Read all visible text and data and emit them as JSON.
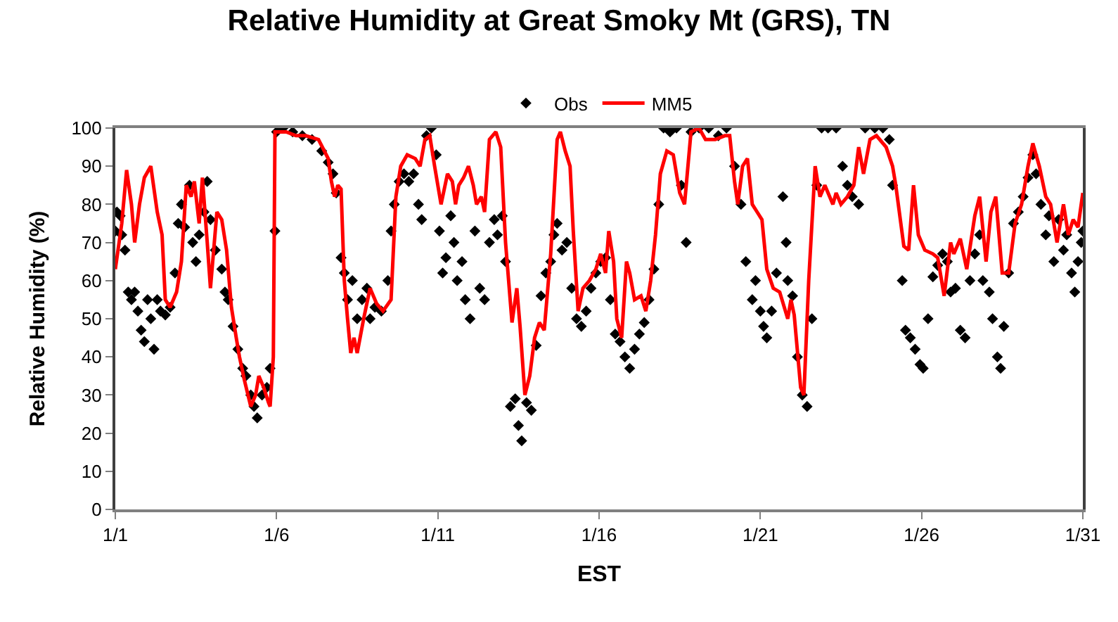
{
  "chart_data": {
    "type": "line",
    "title": "Relative Humidity at Great Smoky Mt (GRS), TN",
    "xlabel": "EST",
    "ylabel": "Relative Humidity (%)",
    "xlim": [
      "--01-01",
      "--01-31"
    ],
    "xticks": [
      {
        "value": "--01-01",
        "label": "1/1"
      },
      {
        "value": "--01-06",
        "label": "1/6"
      },
      {
        "value": "--01-11",
        "label": "1/11"
      },
      {
        "value": "--01-16",
        "label": "1/16"
      },
      {
        "value": "--01-21",
        "label": "1/21"
      },
      {
        "value": "--01-26",
        "label": "1/26"
      },
      {
        "value": "--01-31",
        "label": "1/31"
      }
    ],
    "ylim": [
      0,
      100
    ],
    "yticks": [
      0,
      10,
      20,
      30,
      40,
      50,
      60,
      70,
      80,
      90,
      100
    ],
    "legend": "top",
    "series": [
      {
        "name": "Obs",
        "type": "scatter",
        "marker": "diamond",
        "color": "#000000",
        "x": [
          "--01-01T00:00",
          "--01-01T01:12",
          "--01-01T03:36",
          "--01-01T04:48",
          "--01-01T07:12",
          "--01-01T09:36",
          "--01-01T12:00",
          "--01-01T14:24",
          "--01-01T16:48",
          "--01-01T19:12",
          "--01-01T21:36",
          "--01-02T00:00",
          "--01-02T02:24",
          "--01-02T04:48",
          "--01-02T07:12",
          "--01-02T09:36",
          "--01-02T13:12",
          "--01-02T16:48",
          "--01-02T20:24",
          "--01-02T22:48",
          "--01-03T01:12",
          "--01-03T03:36",
          "--01-03T07:12",
          "--01-03T09:36",
          "--01-03T12:00",
          "--01-03T14:24",
          "--01-03T18:00",
          "--01-03T20:24",
          "--01-03T22:48",
          "--01-04T02:24",
          "--01-04T07:12",
          "--01-04T09:36",
          "--01-04T12:00",
          "--01-04T15:36",
          "--01-04T19:12",
          "--01-04T22:48",
          "--01-05T01:12",
          "--01-05T04:48",
          "--01-05T07:12",
          "--01-05T09:36",
          "--01-05T13:12",
          "--01-05T16:48",
          "--01-05T19:12",
          "--01-05T22:48",
          "--01-06T00:00",
          "--01-06T04:48",
          "--01-06T12:00",
          "--01-06T19:12",
          "--01-07T02:24",
          "--01-07T09:36",
          "--01-07T14:24",
          "--01-07T18:00",
          "--01-07T20:24",
          "--01-08T00:00",
          "--01-08T02:24",
          "--01-08T04:48",
          "--01-08T08:24",
          "--01-08T12:00",
          "--01-08T15:36",
          "--01-08T19:12",
          "--01-08T21:36",
          "--01-09T01:12",
          "--01-09T06:00",
          "--01-09T10:48",
          "--01-09T13:12",
          "--01-09T15:36",
          "--01-09T19:12",
          "--01-09T22:48",
          "--01-10T02:24",
          "--01-10T06:00",
          "--01-10T09:36",
          "--01-10T12:00",
          "--01-10T15:36",
          "--01-10T19:12",
          "--01-10T22:48",
          "--01-11T01:12",
          "--01-11T03:36",
          "--01-11T06:00",
          "--01-11T09:36",
          "--01-11T12:00",
          "--01-11T14:24",
          "--01-11T18:00",
          "--01-11T20:24",
          "--01-12T00:00",
          "--01-12T03:36",
          "--01-12T07:12",
          "--01-12T10:48",
          "--01-12T14:24",
          "--01-12T18:00",
          "--01-12T20:24",
          "--01-13T00:00",
          "--01-13T02:24",
          "--01-13T06:00",
          "--01-13T09:36",
          "--01-13T12:00",
          "--01-13T14:24",
          "--01-13T18:00",
          "--01-13T21:36",
          "--01-14T01:12",
          "--01-14T04:48",
          "--01-14T08:24",
          "--01-14T12:00",
          "--01-14T14:24",
          "--01-14T16:48",
          "--01-14T20:24",
          "--01-15T00:00",
          "--01-15T03:36",
          "--01-15T07:12",
          "--01-15T10:48",
          "--01-15T14:24",
          "--01-15T18:00",
          "--01-15T21:36",
          "--01-16T01:12",
          "--01-16T04:48",
          "--01-16T08:24",
          "--01-16T12:00",
          "--01-16T15:36",
          "--01-16T19:12",
          "--01-16T22:48",
          "--01-17T02:24",
          "--01-17T06:00",
          "--01-17T09:36",
          "--01-17T13:12",
          "--01-17T16:48",
          "--01-17T20:24",
          "--01-18T00:00",
          "--01-18T04:48",
          "--01-18T09:36",
          "--01-18T13:12",
          "--01-18T16:48",
          "--01-18T20:24",
          "--01-19T02:24",
          "--01-19T09:36",
          "--01-19T16:48",
          "--01-19T22:48",
          "--01-20T04:48",
          "--01-20T09:36",
          "--01-20T13:12",
          "--01-20T18:00",
          "--01-20T20:24",
          "--01-21T00:00",
          "--01-21T02:24",
          "--01-21T04:48",
          "--01-21T08:24",
          "--01-21T12:00",
          "--01-21T16:48",
          "--01-21T19:12",
          "--01-21T20:24",
          "--01-22T00:00",
          "--01-22T03:36",
          "--01-22T07:12",
          "--01-22T10:48",
          "--01-22T14:24",
          "--01-22T18:00",
          "--01-22T21:36",
          "--01-23T02:24",
          "--01-23T08:24",
          "--01-23T13:12",
          "--01-23T16:48",
          "--01-23T20:24",
          "--01-24T01:12",
          "--01-24T06:00",
          "--01-24T13:12",
          "--01-24T19:12",
          "--01-25T00:00",
          "--01-25T02:24",
          "--01-25T09:36",
          "--01-25T12:00",
          "--01-25T15:36",
          "--01-25T19:12",
          "--01-25T22:48",
          "--01-26T01:12",
          "--01-26T04:48",
          "--01-26T08:24",
          "--01-26T12:00",
          "--01-26T15:36",
          "--01-26T19:12",
          "--01-26T21:36",
          "--01-27T01:12",
          "--01-27T04:48",
          "--01-27T08:24",
          "--01-27T12:00",
          "--01-27T15:36",
          "--01-27T19:12",
          "--01-27T21:36",
          "--01-28T02:24",
          "--01-28T04:48",
          "--01-28T08:24",
          "--01-28T10:48",
          "--01-28T13:12",
          "--01-28T16:48",
          "--01-28T20:24",
          "--01-29T00:00",
          "--01-29T03:36",
          "--01-29T07:12",
          "--01-29T10:48",
          "--01-29T13:12",
          "--01-29T16:48",
          "--01-29T20:24",
          "--01-29T22:48",
          "--01-30T02:24",
          "--01-30T06:00",
          "--01-30T09:36",
          "--01-30T12:00",
          "--01-30T15:36",
          "--01-30T18:00",
          "--01-30T20:24",
          "--01-30T22:48",
          "--01-31T00:00"
        ],
        "values": [
          73,
          78,
          77,
          72,
          68,
          57,
          55,
          57,
          52,
          47,
          44,
          55,
          50,
          42,
          55,
          52,
          51,
          53,
          62,
          75,
          80,
          74,
          85,
          70,
          65,
          72,
          78,
          86,
          76,
          68,
          63,
          57,
          55,
          48,
          42,
          37,
          35,
          30,
          27,
          24,
          30,
          32,
          37,
          73,
          99,
          100,
          99,
          98,
          97,
          94,
          91,
          88,
          83,
          66,
          62,
          55,
          60,
          50,
          55,
          58,
          50,
          53,
          52,
          60,
          73,
          80,
          86,
          88,
          86,
          88,
          80,
          76,
          98,
          100,
          93,
          73,
          62,
          66,
          77,
          70,
          60,
          65,
          55,
          50,
          73,
          58,
          55,
          70,
          76,
          72,
          77,
          65,
          27,
          29,
          22,
          18,
          28,
          26,
          43,
          56,
          62,
          65,
          72,
          75,
          68,
          70,
          58,
          50,
          48,
          52,
          58,
          62,
          65,
          66,
          55,
          46,
          44,
          40,
          37,
          42,
          46,
          49,
          55,
          63,
          80,
          100,
          99,
          100,
          85,
          70,
          99,
          100,
          100,
          98,
          100,
          90,
          80,
          65,
          55,
          60,
          52,
          48,
          45,
          52,
          62,
          82,
          70,
          60,
          56,
          40,
          30,
          27,
          50,
          85,
          100,
          100,
          100,
          90,
          85,
          82,
          80,
          100,
          100,
          100,
          97,
          85,
          60,
          47,
          45,
          42,
          38,
          37,
          50,
          61,
          64,
          67,
          65,
          57,
          58,
          47,
          45,
          60,
          67,
          72,
          60,
          57,
          50,
          40,
          37,
          48,
          62,
          75,
          78,
          82,
          87,
          93,
          88,
          80,
          72,
          77,
          65,
          76,
          68,
          72,
          62,
          57,
          65,
          70,
          73
        ]
      },
      {
        "name": "MM5",
        "color": "#ff0000",
        "line_style": "solid",
        "x": [
          "--01-01T00:00",
          "--01-01T04:48",
          "--01-01T08:24",
          "--01-01T12:00",
          "--01-01T14:24",
          "--01-01T18:00",
          "--01-01T21:36",
          "--01-02T02:24",
          "--01-02T07:12",
          "--01-02T10:48",
          "--01-02T13:12",
          "--01-02T16:48",
          "--01-02T21:36",
          "--01-03T01:12",
          "--01-03T04:48",
          "--01-03T08:24",
          "--01-03T10:48",
          "--01-03T14:24",
          "--01-03T16:48",
          "--01-03T20:24",
          "--01-03T22:48",
          "--01-04T03:36",
          "--01-04T07:12",
          "--01-04T10:48",
          "--01-04T14:24",
          "--01-04T18:00",
          "--01-04T20:24",
          "--01-05T00:00",
          "--01-05T04:48",
          "--01-05T08:24",
          "--01-05T10:48",
          "--01-05T14:24",
          "--01-05T18:00",
          "--01-05T19:12",
          "--01-05T21:36",
          "--01-05T22:48",
          "--01-06T07:12",
          "--01-06T14:24",
          "--01-06T21:36",
          "--01-07T07:12",
          "--01-07T14:24",
          "--01-07T16:48",
          "--01-07T19:12",
          "--01-07T21:36",
          "--01-08T00:00",
          "--01-08T02:24",
          "--01-08T04:48",
          "--01-08T07:12",
          "--01-08T09:36",
          "--01-08T12:00",
          "--01-08T16:48",
          "--01-08T21:36",
          "--01-09T02:24",
          "--01-09T07:12",
          "--01-09T13:12",
          "--01-09T16:48",
          "--01-09T20:24",
          "--01-10T01:12",
          "--01-10T07:12",
          "--01-10T10:48",
          "--01-10T14:24",
          "--01-10T18:00",
          "--01-10T21:36",
          "--01-11T02:24",
          "--01-11T07:12",
          "--01-11T10:48",
          "--01-11T13:12",
          "--01-11T15:36",
          "--01-11T19:12",
          "--01-11T22:48",
          "--01-12T02:24",
          "--01-12T04:48",
          "--01-12T08:24",
          "--01-12T10:48",
          "--01-12T14:24",
          "--01-12T19:12",
          "--01-12T22:48",
          "--01-13T02:24",
          "--01-13T07:12",
          "--01-13T10:48",
          "--01-13T13:12",
          "--01-13T16:48",
          "--01-13T20:24",
          "--01-14T00:00",
          "--01-14T03:36",
          "--01-14T07:12",
          "--01-14T12:00",
          "--01-14T16:48",
          "--01-14T19:12",
          "--01-14T22:48",
          "--01-15T02:24",
          "--01-15T04:48",
          "--01-15T08:24",
          "--01-15T12:00",
          "--01-15T16:48",
          "--01-15T21:36",
          "--01-16T01:12",
          "--01-16T04:48",
          "--01-16T07:12",
          "--01-16T10:48",
          "--01-16T13:12",
          "--01-16T16:48",
          "--01-16T20:24",
          "--01-16T22:48",
          "--01-17T02:24",
          "--01-17T07:12",
          "--01-17T10:48",
          "--01-17T14:24",
          "--01-17T18:00",
          "--01-17T21:36",
          "--01-18T02:24",
          "--01-18T07:12",
          "--01-18T12:00",
          "--01-18T15:36",
          "--01-18T20:24",
          "--01-19T02:24",
          "--01-19T07:12",
          "--01-19T14:24",
          "--01-19T21:36",
          "--01-20T01:12",
          "--01-20T04:48",
          "--01-20T07:12",
          "--01-20T10:48",
          "--01-20T14:24",
          "--01-20T18:00",
          "--01-20T21:36",
          "--01-21T01:12",
          "--01-21T04:48",
          "--01-21T09:36",
          "--01-21T14:24",
          "--01-21T20:24",
          "--01-21T22:48",
          "--01-22T01:12",
          "--01-22T06:00",
          "--01-22T08:24",
          "--01-22T12:00",
          "--01-22T16:48",
          "--01-22T20:24",
          "--01-23T00:00",
          "--01-23T06:00",
          "--01-23T08:24",
          "--01-23T12:00",
          "--01-23T16:48",
          "--01-23T21:36",
          "--01-24T01:12",
          "--01-24T04:48",
          "--01-24T09:36",
          "--01-24T14:24",
          "--01-24T21:36",
          "--01-25T02:24",
          "--01-25T04:48",
          "--01-25T10:48",
          "--01-25T14:24",
          "--01-25T18:00",
          "--01-25T21:36",
          "--01-26T02:24",
          "--01-26T08:24",
          "--01-26T12:00",
          "--01-26T16:48",
          "--01-26T21:36",
          "--01-27T00:00",
          "--01-27T04:48",
          "--01-27T09:36",
          "--01-27T15:36",
          "--01-27T19:12",
          "--01-28T00:00",
          "--01-28T03:36",
          "--01-28T07:12",
          "--01-28T12:00",
          "--01-28T16:48",
          "--01-28T21:36",
          "--01-29T02:24",
          "--01-29T07:12",
          "--01-29T10:48",
          "--01-29T15:36",
          "--01-29T20:24",
          "--01-30T00:00",
          "--01-30T04:48",
          "--01-30T09:36",
          "--01-30T13:12",
          "--01-30T16:48",
          "--01-30T20:24",
          "--01-31T00:00"
        ],
        "values": [
          63,
          75,
          89,
          80,
          70,
          80,
          87,
          90,
          78,
          72,
          55,
          53,
          57,
          65,
          85,
          82,
          86,
          75,
          87,
          70,
          58,
          78,
          76,
          68,
          53,
          45,
          40,
          34,
          27,
          30,
          35,
          32,
          28,
          27,
          40,
          99,
          99,
          98,
          98,
          97,
          92,
          86,
          82,
          85,
          84,
          60,
          50,
          41,
          45,
          41,
          50,
          58,
          54,
          52,
          55,
          82,
          90,
          93,
          92,
          90,
          97,
          98,
          90,
          80,
          88,
          86,
          80,
          85,
          87,
          90,
          85,
          80,
          82,
          78,
          97,
          99,
          95,
          70,
          49,
          58,
          48,
          30,
          35,
          45,
          49,
          47,
          67,
          97,
          99,
          94,
          90,
          73,
          52,
          58,
          60,
          63,
          67,
          62,
          73,
          65,
          50,
          45,
          65,
          62,
          55,
          56,
          52,
          60,
          72,
          88,
          94,
          93,
          83,
          80,
          99,
          100,
          97,
          97,
          98,
          98,
          86,
          80,
          90,
          92,
          80,
          78,
          76,
          63,
          58,
          57,
          50,
          55,
          51,
          32,
          30,
          60,
          90,
          82,
          85,
          80,
          83,
          80,
          82,
          85,
          95,
          88,
          97,
          98,
          95,
          90,
          85,
          69,
          68,
          85,
          72,
          68,
          67,
          66,
          56,
          70,
          67,
          71,
          63,
          77,
          82,
          65,
          78,
          82,
          62,
          62,
          75,
          80,
          90,
          96,
          90,
          82,
          80,
          70,
          80,
          72,
          76,
          74,
          83
        ]
      }
    ]
  }
}
